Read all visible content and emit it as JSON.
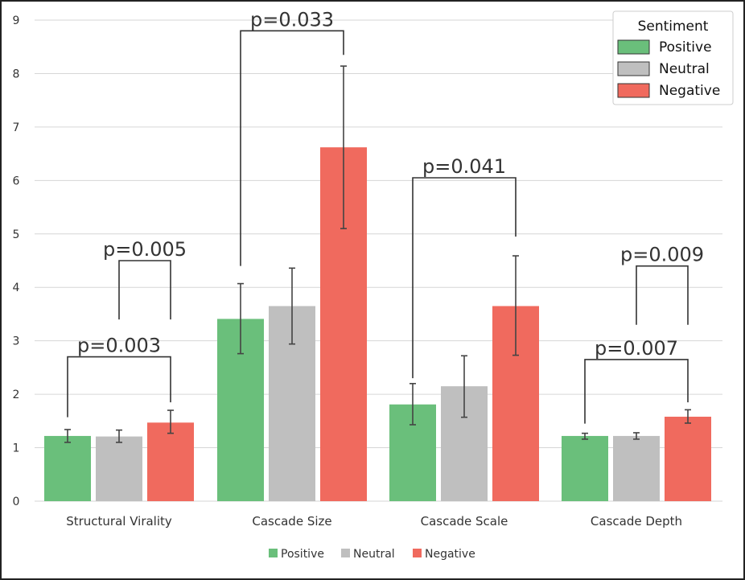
{
  "chart_data": {
    "type": "bar",
    "categories": [
      "Structural Virality",
      "Cascade Size",
      "Cascade Scale",
      "Cascade Depth"
    ],
    "series": [
      {
        "name": "Positive",
        "color": "#6abf7b",
        "values": [
          1.22,
          3.41,
          1.81,
          1.22
        ],
        "err_low": [
          1.1,
          2.76,
          1.43,
          1.16
        ],
        "err_high": [
          1.34,
          4.07,
          2.2,
          1.27
        ]
      },
      {
        "name": "Neutral",
        "color": "#bfbfbf",
        "values": [
          1.21,
          3.65,
          2.15,
          1.22
        ],
        "err_low": [
          1.1,
          2.94,
          1.57,
          1.16
        ],
        "err_high": [
          1.33,
          4.36,
          2.72,
          1.28
        ]
      },
      {
        "name": "Negative",
        "color": "#f06a5e",
        "values": [
          1.47,
          6.62,
          3.65,
          1.58
        ],
        "err_low": [
          1.27,
          5.1,
          2.73,
          1.46
        ],
        "err_high": [
          1.7,
          8.14,
          4.59,
          1.71
        ]
      }
    ],
    "ylim": [
      0,
      9
    ],
    "yticks": [
      0,
      1,
      2,
      3,
      4,
      5,
      6,
      7,
      8,
      9
    ],
    "grid": true,
    "legend_title": "Sentiment",
    "legend_placement": "top-right",
    "bottom_legend": true,
    "annotations": [
      {
        "cat": 0,
        "from": 0,
        "to": 2,
        "y_from": 1.57,
        "y_to": 1.85,
        "y_top": 2.7,
        "label": "p=0.003"
      },
      {
        "cat": 0,
        "from": 1,
        "to": 2,
        "y_from": 3.4,
        "y_to": 3.4,
        "y_top": 4.5,
        "label": "p=0.005"
      },
      {
        "cat": 1,
        "from": 0,
        "to": 2,
        "y_from": 4.4,
        "y_to": 8.35,
        "y_top": 8.8,
        "label": "p=0.033"
      },
      {
        "cat": 2,
        "from": 0,
        "to": 2,
        "y_from": 2.3,
        "y_to": 4.95,
        "y_top": 6.05,
        "label": "p=0.041"
      },
      {
        "cat": 3,
        "from": 0,
        "to": 2,
        "y_from": 1.45,
        "y_to": 1.85,
        "y_top": 2.65,
        "label": "p=0.007"
      },
      {
        "cat": 3,
        "from": 1,
        "to": 2,
        "y_from": 3.3,
        "y_to": 3.3,
        "y_top": 4.4,
        "label": "p=0.009"
      }
    ]
  }
}
